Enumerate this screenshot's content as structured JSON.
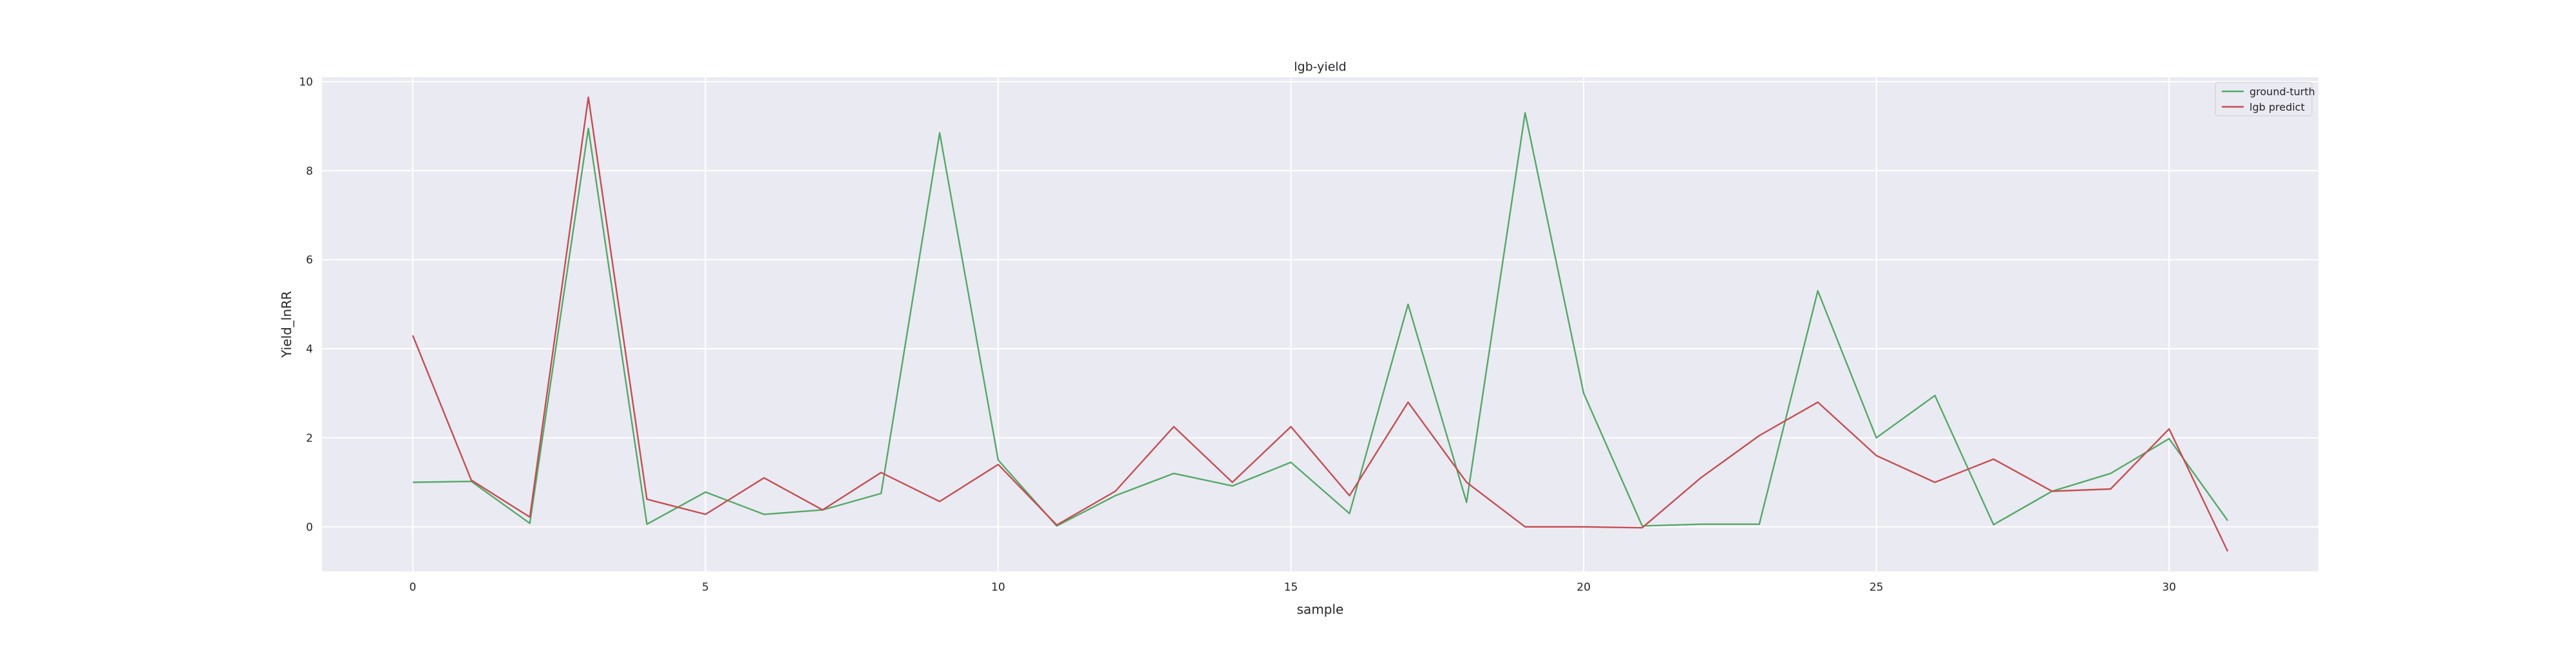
{
  "chart_data": {
    "type": "line",
    "title": "lgb-yield",
    "xlabel": "sample",
    "ylabel": "Yield_lnRR",
    "xlim": [
      -1.55,
      32.55
    ],
    "ylim": [
      -1.0,
      10.1
    ],
    "xticks": [
      0,
      5,
      10,
      15,
      20,
      25,
      30
    ],
    "yticks": [
      0,
      2,
      4,
      6,
      8,
      10
    ],
    "grid": true,
    "legend_position": "top-right",
    "x": [
      0,
      1,
      2,
      3,
      4,
      5,
      6,
      7,
      8,
      9,
      10,
      11,
      12,
      13,
      14,
      15,
      16,
      17,
      18,
      19,
      20,
      21,
      22,
      23,
      24,
      25,
      26,
      27,
      28,
      29,
      30,
      31
    ],
    "series": [
      {
        "name": "ground-turth",
        "color": "#55a868",
        "values": [
          1.0,
          1.02,
          0.08,
          8.95,
          0.06,
          0.78,
          0.28,
          0.38,
          0.75,
          8.85,
          1.5,
          0.02,
          0.7,
          1.2,
          0.92,
          1.45,
          0.3,
          5.0,
          0.55,
          9.3,
          3.0,
          0.02,
          0.06,
          0.06,
          5.3,
          2.0,
          2.95,
          0.05,
          0.8,
          1.2,
          1.98,
          0.14
        ]
      },
      {
        "name": "lgb predict",
        "color": "#c44e52",
        "values": [
          4.3,
          1.05,
          0.22,
          9.65,
          0.62,
          0.28,
          1.1,
          0.38,
          1.22,
          0.57,
          1.4,
          0.04,
          0.8,
          2.25,
          1.0,
          2.25,
          0.7,
          2.8,
          1.0,
          0.0,
          0.0,
          -0.02,
          1.1,
          2.05,
          2.8,
          1.6,
          1.0,
          1.52,
          0.8,
          0.85,
          2.2,
          -0.55
        ]
      }
    ]
  }
}
